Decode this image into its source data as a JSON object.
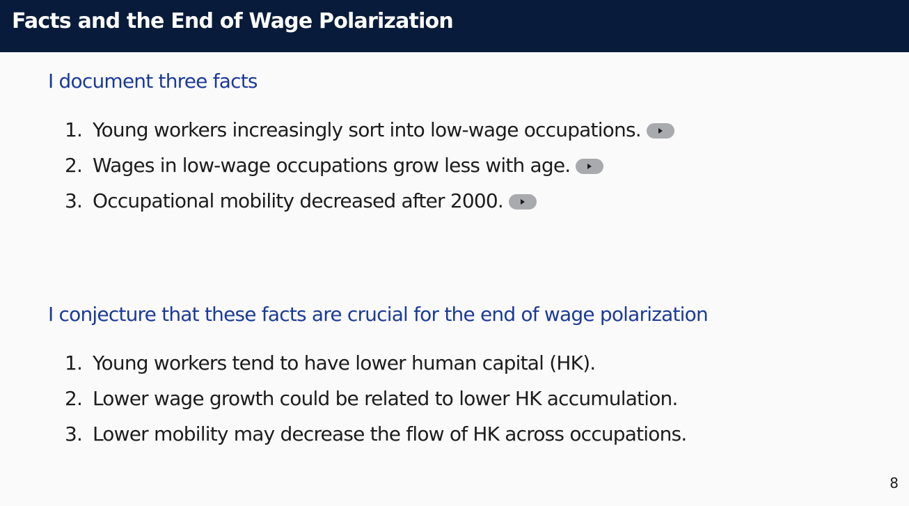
{
  "slide": {
    "title": "Facts and the End of Wage Polarization",
    "page_number": "8"
  },
  "facts": {
    "heading": "I document three facts",
    "items": [
      {
        "number": "1.",
        "text": "Young workers increasingly sort into low-wage occupations."
      },
      {
        "number": "2.",
        "text": "Wages in low-wage occupations grow less with age."
      },
      {
        "number": "3.",
        "text": "Occupational mobility decreased after 2000."
      }
    ]
  },
  "conjecture": {
    "heading": "I conjecture that these facts are crucial for the end of wage polarization",
    "items": [
      {
        "number": "1.",
        "text": "Young workers tend to have lower human capital (HK)."
      },
      {
        "number": "2.",
        "text": "Lower wage growth could be related to lower HK accumulation."
      },
      {
        "number": "3.",
        "text": "Lower mobility may decrease the flow of HK across occupations."
      }
    ]
  },
  "icons": {
    "link_button_icon": "play-icon",
    "link_button_color": "#a8aaad"
  },
  "colors": {
    "title_bar": "#081b3a",
    "heading": "#1a3a9a",
    "body_text": "#1c1c1c",
    "background": "#fafafa"
  }
}
